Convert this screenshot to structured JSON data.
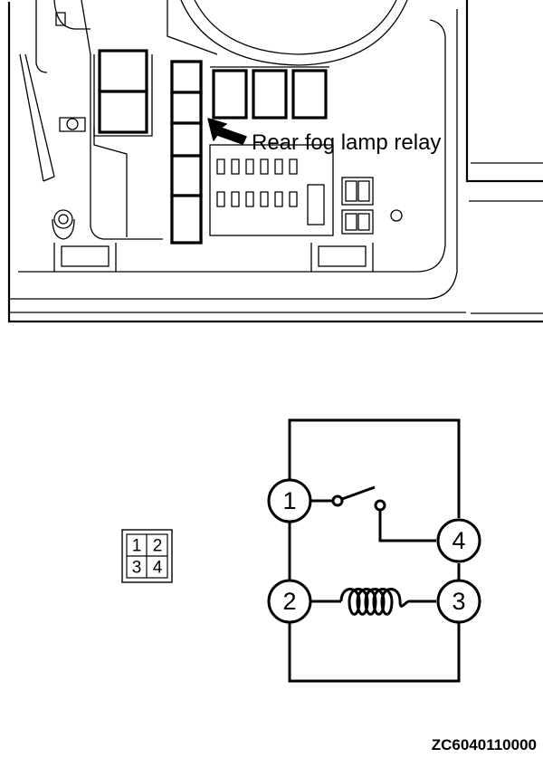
{
  "callout": {
    "label": "Rear fog lamp relay"
  },
  "connector": {
    "cells": [
      "1",
      "2",
      "3",
      "4"
    ]
  },
  "schematic": {
    "pins": [
      "1",
      "2",
      "3",
      "4"
    ]
  },
  "figure_code": "ZC6040110000"
}
